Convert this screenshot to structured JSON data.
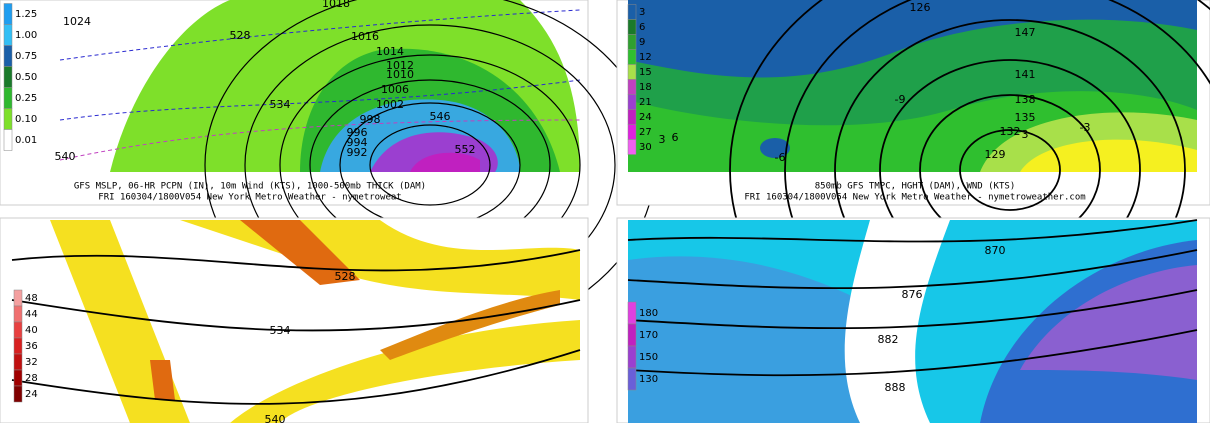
{
  "panels": [
    {
      "caption": [
        "GFS MSLP, 06-HR PCPN (IN), 10m Wind (KTS), 1000-500mb THICK (DAM)",
        "FRI 160304/1800V054 New York Metro Weather - nymetroweat"
      ],
      "legend": [
        "1.25",
        "1.00",
        "0.75",
        "0.50",
        "0.25",
        "0.10",
        "0.01"
      ],
      "contour_labels": [
        "1024",
        "1018",
        "1016",
        "528",
        "534",
        "540",
        "1014",
        "1012",
        "1010",
        "1006",
        "1002",
        "998",
        "996",
        "994",
        "992",
        "546",
        "552"
      ]
    },
    {
      "caption": [
        "850mb GFS TMPC, HGHT (DAM), WND (KTS)",
        "FRI 160304/1800V054 New York Metro Weather - nymetroweather.com"
      ],
      "legend": [
        "3",
        "6",
        "9",
        "12",
        "15",
        "18",
        "21",
        "24",
        "27",
        "30"
      ],
      "contour_labels": [
        "147",
        "141",
        "138",
        "135",
        "132",
        "129",
        "126",
        "-9",
        "-6",
        "-3",
        "3",
        "6",
        "3"
      ]
    },
    {
      "caption": [],
      "legend": [
        "48",
        "44",
        "40",
        "36",
        "32",
        "28",
        "24"
      ],
      "contour_labels": [
        "528",
        "534",
        "540"
      ]
    },
    {
      "caption": [],
      "legend": [
        "180",
        "170",
        "150",
        "130"
      ],
      "contour_labels": [
        "870",
        "876",
        "882",
        "888"
      ]
    }
  ]
}
